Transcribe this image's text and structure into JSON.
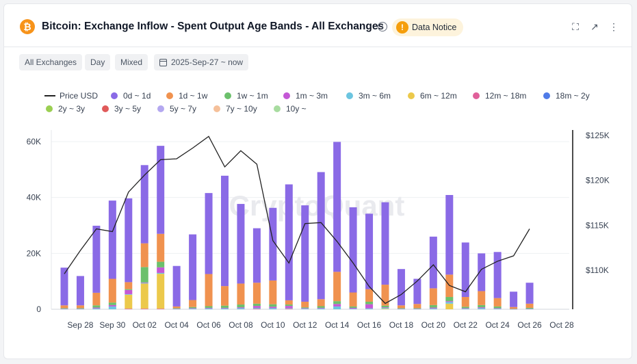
{
  "header": {
    "coin_icon": "bitcoin-icon",
    "coin_symbol": "₿",
    "title": "Bitcoin: Exchange Inflow - Spent Output Age Bands - All Exchanges",
    "info_icon": "info-icon",
    "info_symbol": "i",
    "notice_label": "Data Notice",
    "notice_symbol": "!",
    "fullscreen_icon": "fullscreen-icon",
    "fullscreen_symbol": "⛶",
    "open_icon": "external-link-icon",
    "open_symbol": "↗",
    "more_icon": "more-vertical-icon",
    "more_symbol": "⋮"
  },
  "filters": {
    "exchange": "All Exchanges",
    "window": "Day",
    "mode": "Mixed",
    "calendar_icon": "calendar-icon",
    "date_range": "2025-Sep-27 ~ now"
  },
  "chart_data": {
    "type": "bar",
    "stacked": true,
    "watermark": "CryptoQuant",
    "x_tick_labels": [
      "Sep 28",
      "Sep 30",
      "Oct 02",
      "Oct 04",
      "Oct 06",
      "Oct 08",
      "Oct 10",
      "Oct 12",
      "Oct 14",
      "Oct 16",
      "Oct 18",
      "Oct 20",
      "Oct 22",
      "Oct 24",
      "Oct 26",
      "Oct 28"
    ],
    "y_left": {
      "ticks": [
        "0",
        "20K",
        "40K",
        "60K"
      ],
      "ylim": [
        0,
        60000
      ]
    },
    "y_right": {
      "ticks": [
        "$110K",
        "$115K",
        "$120K",
        "$125K"
      ],
      "ylim": [
        105500,
        125000
      ]
    },
    "legend": [
      {
        "name": "Price USD",
        "color": "#222222",
        "kind": "line"
      },
      {
        "name": "0d ~ 1d",
        "color": "#8a6ae6"
      },
      {
        "name": "1d ~ 1w",
        "color": "#f0924f"
      },
      {
        "name": "1w ~ 1m",
        "color": "#6cc06c"
      },
      {
        "name": "1m ~ 3m",
        "color": "#c458d6"
      },
      {
        "name": "3m ~ 6m",
        "color": "#6cc5e0"
      },
      {
        "name": "6m ~ 12m",
        "color": "#ecc94b"
      },
      {
        "name": "12m ~ 18m",
        "color": "#e0609a"
      },
      {
        "name": "18m ~ 2y",
        "color": "#4f7be8"
      },
      {
        "name": "2y ~ 3y",
        "color": "#9bcf52"
      },
      {
        "name": "3y ~ 5y",
        "color": "#e05a5a"
      },
      {
        "name": "5y ~ 7y",
        "color": "#b4a8f0"
      },
      {
        "name": "7y ~ 10y",
        "color": "#f5c09a"
      },
      {
        "name": "10y ~",
        "color": "#a8dca0"
      }
    ],
    "dates": [
      "Sep 27",
      "Sep 28",
      "Sep 29",
      "Sep 30",
      "Oct 01",
      "Oct 02",
      "Oct 03",
      "Oct 04",
      "Oct 05",
      "Oct 06",
      "Oct 07",
      "Oct 08",
      "Oct 09",
      "Oct 10",
      "Oct 11",
      "Oct 12",
      "Oct 13",
      "Oct 14",
      "Oct 15",
      "Oct 16",
      "Oct 17",
      "Oct 18",
      "Oct 19",
      "Oct 20",
      "Oct 21",
      "Oct 22",
      "Oct 23",
      "Oct 24",
      "Oct 25",
      "Oct 26"
    ],
    "series": [
      {
        "name": "0d ~ 1d",
        "values": [
          13500,
          10500,
          24000,
          28000,
          30000,
          28000,
          31500,
          14500,
          23500,
          29000,
          39500,
          28500,
          19500,
          26000,
          41500,
          34500,
          45500,
          46500,
          30500,
          27000,
          29500,
          13000,
          9000,
          18500,
          28500,
          19500,
          13500,
          16500,
          5500,
          7500
        ]
      },
      {
        "name": "1d ~ 1w",
        "values": [
          1000,
          1000,
          4500,
          8500,
          2500,
          8500,
          10000,
          600,
          2500,
          11500,
          7000,
          7500,
          7500,
          8500,
          1500,
          2000,
          2500,
          10500,
          5000,
          4500,
          7500,
          1000,
          1500,
          6000,
          8000,
          3500,
          5000,
          3000,
          600,
          1500
        ]
      },
      {
        "name": "1w ~ 1m",
        "values": [
          200,
          200,
          800,
          900,
          300,
          5500,
          2000,
          200,
          400,
          600,
          800,
          1000,
          800,
          900,
          500,
          300,
          600,
          1000,
          500,
          900,
          600,
          200,
          200,
          900,
          1500,
          500,
          800,
          600,
          100,
          300
        ]
      },
      {
        "name": "1m ~ 3m",
        "values": [
          100,
          100,
          300,
          500,
          1500,
          200,
          2000,
          100,
          200,
          200,
          200,
          300,
          700,
          500,
          800,
          200,
          200,
          900,
          300,
          1500,
          200,
          100,
          100,
          300,
          300,
          200,
          300,
          200,
          50,
          100
        ]
      },
      {
        "name": "3m ~ 6m",
        "values": [
          100,
          100,
          300,
          1000,
          200,
          200,
          300,
          100,
          200,
          300,
          300,
          400,
          300,
          400,
          200,
          200,
          300,
          1000,
          200,
          300,
          300,
          100,
          100,
          300,
          600,
          200,
          400,
          200,
          50,
          100
        ]
      },
      {
        "name": "6m ~ 12m",
        "values": [
          0,
          0,
          0,
          0,
          5000,
          9000,
          12500,
          0,
          0,
          0,
          0,
          0,
          0,
          0,
          0,
          0,
          0,
          0,
          0,
          0,
          200,
          0,
          0,
          0,
          2000,
          0,
          0,
          0,
          0,
          0
        ]
      },
      {
        "name": "12m ~ 18m",
        "values": [
          0,
          0,
          0,
          0,
          200,
          200,
          200,
          0,
          0,
          0,
          0,
          0,
          200,
          0,
          200,
          0,
          0,
          0,
          0,
          0,
          0,
          0,
          0,
          0,
          0,
          0,
          0,
          0,
          0,
          0
        ]
      }
    ],
    "price_usd": [
      109600,
      112200,
      114600,
      114300,
      118700,
      120600,
      122300,
      122400,
      123600,
      124900,
      121500,
      123300,
      121800,
      113300,
      110800,
      115200,
      115300,
      113200,
      110800,
      108200,
      106300,
      107300,
      108800,
      110600,
      108300,
      107600,
      110100,
      111000,
      111600,
      114600
    ]
  }
}
